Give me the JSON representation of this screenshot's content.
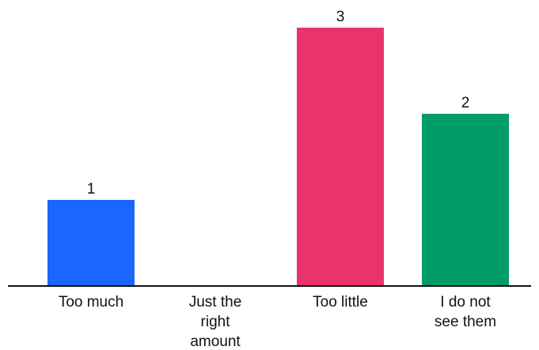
{
  "chart_data": {
    "type": "bar",
    "categories": [
      "Too much",
      "Just the right amount",
      "Too little",
      "I do not see them"
    ],
    "category_label_lines": [
      [
        "Too much"
      ],
      [
        "Just the",
        "right",
        "amount"
      ],
      [
        "Too little"
      ],
      [
        "I do not",
        "see them"
      ]
    ],
    "values": [
      1,
      0,
      3,
      2
    ],
    "data_labels": [
      "1",
      "",
      "3",
      "2"
    ],
    "colors": [
      "#1a66ff",
      "#1a66ff",
      "#e8336d",
      "#009e66"
    ],
    "title": "",
    "xlabel": "",
    "ylabel": "",
    "ylim": [
      0,
      3
    ],
    "grid": false,
    "legend": "none"
  }
}
